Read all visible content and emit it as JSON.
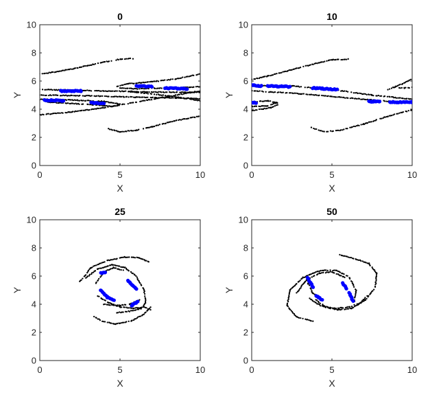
{
  "chart_data": [
    {
      "type": "scatter",
      "title": "0",
      "xlabel": "X",
      "ylabel": "Y",
      "xlim": [
        0,
        10
      ],
      "ylim": [
        0,
        10
      ],
      "xticks": [
        "0",
        "5",
        "10"
      ],
      "yticks": [
        "0",
        "2",
        "4",
        "6",
        "8",
        "10"
      ],
      "grid": false,
      "colors": {
        "tracer": "#000000",
        "highlight": "#0000ff"
      },
      "series": [
        {
          "color": "#000000",
          "curves": [
            [
              [
                0,
                6.5
              ],
              [
                1,
                6.65
              ],
              [
                2,
                6.85
              ],
              [
                3,
                7.1
              ],
              [
                4,
                7.35
              ],
              [
                5,
                7.55
              ],
              [
                5.8,
                7.6
              ]
            ],
            [
              [
                0,
                5.4
              ],
              [
                2,
                5.35
              ],
              [
                4,
                5.3
              ],
              [
                6,
                5.25
              ],
              [
                8,
                5.2
              ],
              [
                10,
                5.2
              ]
            ],
            [
              [
                0,
                5.0
              ],
              [
                3,
                4.95
              ],
              [
                6,
                4.85
              ],
              [
                10,
                4.75
              ]
            ],
            [
              [
                0,
                4.7
              ],
              [
                2,
                4.65
              ],
              [
                4,
                4.55
              ],
              [
                5,
                4.35
              ],
              [
                4.5,
                4.2
              ],
              [
                3.5,
                4.3
              ],
              [
                2,
                4.4
              ],
              [
                0.5,
                4.5
              ]
            ],
            [
              [
                0,
                3.6
              ],
              [
                2,
                3.8
              ],
              [
                4,
                4.1
              ],
              [
                6,
                4.5
              ],
              [
                8,
                4.9
              ],
              [
                10,
                5.3
              ]
            ],
            [
              [
                4.3,
                2.6
              ],
              [
                5,
                2.4
              ],
              [
                6,
                2.5
              ],
              [
                7,
                2.75
              ],
              [
                8.5,
                3.2
              ],
              [
                10,
                3.5
              ]
            ],
            [
              [
                4.8,
                5.6
              ],
              [
                5.5,
                5.8
              ],
              [
                7,
                5.95
              ],
              [
                8.5,
                6.15
              ],
              [
                10,
                6.5
              ]
            ],
            [
              [
                5,
                5.5
              ],
              [
                6,
                5.45
              ],
              [
                8,
                5.5
              ],
              [
                10,
                5.6
              ]
            ],
            [
              [
                5.5,
                5.25
              ],
              [
                6.5,
                5.15
              ],
              [
                8,
                4.95
              ],
              [
                10,
                4.6
              ]
            ]
          ]
        },
        {
          "color": "#0000ff",
          "curves": [
            [
              [
                1.3,
                5.3
              ],
              [
                2.6,
                5.3
              ]
            ],
            [
              [
                0.3,
                4.65
              ],
              [
                1.5,
                4.6
              ]
            ],
            [
              [
                3.2,
                4.45
              ],
              [
                4.0,
                4.4
              ]
            ],
            [
              [
                6.0,
                5.65
              ],
              [
                7.0,
                5.6
              ]
            ],
            [
              [
                7.8,
                5.5
              ],
              [
                9.2,
                5.45
              ]
            ]
          ]
        }
      ]
    },
    {
      "type": "scatter",
      "title": "10",
      "xlabel": "X",
      "ylabel": "Y",
      "xlim": [
        0,
        10
      ],
      "ylim": [
        0,
        10
      ],
      "xticks": [
        "0",
        "5",
        "10"
      ],
      "yticks": [
        "0",
        "2",
        "4",
        "6",
        "8",
        "10"
      ],
      "grid": false,
      "colors": {
        "tracer": "#000000",
        "highlight": "#0000ff"
      },
      "series": [
        {
          "color": "#000000",
          "curves": [
            [
              [
                0,
                6.1
              ],
              [
                1,
                6.35
              ],
              [
                2.5,
                6.8
              ],
              [
                4,
                7.25
              ],
              [
                5,
                7.5
              ],
              [
                6,
                7.55
              ]
            ],
            [
              [
                0,
                5.7
              ],
              [
                2.5,
                5.65
              ],
              [
                5,
                5.4
              ],
              [
                7.5,
                5.0
              ],
              [
                10,
                4.7
              ]
            ],
            [
              [
                0,
                5.3
              ],
              [
                3,
                5.1
              ],
              [
                6,
                4.8
              ],
              [
                8,
                4.6
              ],
              [
                10,
                4.45
              ]
            ],
            [
              [
                0,
                4.5
              ],
              [
                1,
                4.6
              ],
              [
                1.6,
                4.45
              ],
              [
                1,
                4.25
              ],
              [
                0.3,
                4.2
              ],
              [
                0,
                4.2
              ]
            ],
            [
              [
                0,
                3.9
              ],
              [
                1.2,
                4.1
              ],
              [
                1.6,
                4.3
              ]
            ],
            [
              [
                3.7,
                2.7
              ],
              [
                4.5,
                2.4
              ],
              [
                5.5,
                2.5
              ],
              [
                7,
                2.95
              ],
              [
                8.5,
                3.5
              ],
              [
                10,
                3.95
              ]
            ],
            [
              [
                8.5,
                5.4
              ],
              [
                9.2,
                5.7
              ],
              [
                10,
                6.15
              ]
            ],
            [
              [
                8.8,
                5.55
              ],
              [
                9.5,
                5.5
              ],
              [
                10,
                5.55
              ]
            ]
          ]
        },
        {
          "color": "#0000ff",
          "curves": [
            [
              [
                0,
                5.7
              ],
              [
                0.6,
                5.65
              ]
            ],
            [
              [
                1.0,
                5.65
              ],
              [
                2.4,
                5.6
              ]
            ],
            [
              [
                3.8,
                5.5
              ],
              [
                5.3,
                5.4
              ]
            ],
            [
              [
                7.3,
                4.55
              ],
              [
                8.0,
                4.55
              ]
            ],
            [
              [
                8.6,
                4.5
              ],
              [
                10,
                4.5
              ]
            ],
            [
              [
                0,
                4.5
              ],
              [
                0.25,
                4.45
              ]
            ]
          ]
        }
      ]
    },
    {
      "type": "scatter",
      "title": "25",
      "xlabel": "X",
      "ylabel": "Y",
      "xlim": [
        0,
        10
      ],
      "ylim": [
        0,
        10
      ],
      "xticks": [
        "0",
        "5",
        "10"
      ],
      "yticks": [
        "0",
        "2",
        "4",
        "6",
        "8",
        "10"
      ],
      "grid": false,
      "colors": {
        "tracer": "#000000",
        "highlight": "#0000ff"
      },
      "series": [
        {
          "color": "#000000",
          "curves": [
            [
              [
                2.5,
                5.6
              ],
              [
                3.2,
                6.6
              ],
              [
                4.2,
                7.1
              ],
              [
                5.3,
                7.35
              ],
              [
                6.2,
                7.3
              ],
              [
                6.8,
                7.0
              ]
            ],
            [
              [
                2.8,
                5.8
              ],
              [
                3.6,
                6.5
              ],
              [
                4.5,
                6.8
              ],
              [
                5.3,
                6.6
              ],
              [
                6.0,
                6.0
              ],
              [
                6.5,
                5.0
              ],
              [
                6.6,
                4.1
              ],
              [
                6.3,
                3.7
              ],
              [
                5.6,
                3.5
              ],
              [
                4.8,
                3.4
              ]
            ],
            [
              [
                3.5,
                5.5
              ],
              [
                4.0,
                6.3
              ],
              [
                4.6,
                6.6
              ],
              [
                5.2,
                6.4
              ]
            ],
            [
              [
                3.6,
                4.6
              ],
              [
                4.3,
                4.1
              ],
              [
                5.0,
                3.8
              ],
              [
                5.8,
                3.7
              ],
              [
                6.5,
                3.8
              ],
              [
                6.9,
                3.6
              ]
            ],
            [
              [
                3.4,
                3.1
              ],
              [
                3.9,
                2.8
              ],
              [
                4.7,
                2.6
              ],
              [
                5.7,
                2.8
              ],
              [
                6.5,
                3.3
              ],
              [
                6.9,
                3.8
              ]
            ],
            [
              [
                4.0,
                4.0
              ],
              [
                4.8,
                3.9
              ],
              [
                5.6,
                4.0
              ],
              [
                6.2,
                4.3
              ]
            ]
          ]
        },
        {
          "color": "#0000ff",
          "curves": [
            [
              [
                3.8,
                6.2
              ],
              [
                4.1,
                6.25
              ]
            ],
            [
              [
                3.8,
                5.0
              ],
              [
                4.2,
                4.5
              ],
              [
                4.6,
                4.3
              ]
            ],
            [
              [
                5.5,
                5.7
              ],
              [
                6.0,
                5.1
              ]
            ],
            [
              [
                5.7,
                3.9
              ],
              [
                6.1,
                4.2
              ]
            ]
          ]
        }
      ]
    },
    {
      "type": "scatter",
      "title": "50",
      "xlabel": "X",
      "ylabel": "Y",
      "xlim": [
        0,
        10
      ],
      "ylim": [
        0,
        10
      ],
      "xticks": [
        "0",
        "5",
        "10"
      ],
      "yticks": [
        "0",
        "2",
        "4",
        "6",
        "8",
        "10"
      ],
      "grid": false,
      "colors": {
        "tracer": "#000000",
        "highlight": "#0000ff"
      },
      "series": [
        {
          "color": "#000000",
          "curves": [
            [
              [
                3.8,
                2.8
              ],
              [
                2.8,
                3.1
              ],
              [
                2.2,
                3.9
              ],
              [
                2.4,
                5.0
              ],
              [
                3.2,
                5.9
              ],
              [
                4.3,
                6.4
              ],
              [
                5.3,
                6.4
              ],
              [
                6.1,
                5.9
              ],
              [
                6.5,
                5.0
              ],
              [
                6.4,
                4.2
              ]
            ],
            [
              [
                5.5,
                7.5
              ],
              [
                6.5,
                7.2
              ],
              [
                7.3,
                6.9
              ],
              [
                7.8,
                6.2
              ],
              [
                7.7,
                5.2
              ],
              [
                7.1,
                4.3
              ],
              [
                6.2,
                3.7
              ],
              [
                5.4,
                3.6
              ],
              [
                4.6,
                3.8
              ],
              [
                4.0,
                4.3
              ]
            ],
            [
              [
                2.8,
                4.8
              ],
              [
                3.4,
                5.7
              ],
              [
                4.2,
                6.2
              ],
              [
                5.0,
                6.3
              ],
              [
                5.8,
                5.9
              ]
            ],
            [
              [
                3.6,
                4.4
              ],
              [
                4.3,
                3.9
              ],
              [
                5.2,
                3.7
              ],
              [
                6.1,
                3.8
              ],
              [
                6.8,
                4.1
              ],
              [
                7.2,
                4.6
              ]
            ],
            [
              [
                3.5,
                5.5
              ],
              [
                3.8,
                4.8
              ],
              [
                4.2,
                4.4
              ]
            ]
          ]
        },
        {
          "color": "#0000ff",
          "curves": [
            [
              [
                3.5,
                5.9
              ],
              [
                3.8,
                5.2
              ]
            ],
            [
              [
                4.0,
                4.6
              ],
              [
                4.4,
                4.3
              ]
            ],
            [
              [
                5.7,
                5.5
              ],
              [
                5.9,
                5.1
              ]
            ],
            [
              [
                6.1,
                4.8
              ],
              [
                6.3,
                4.2
              ]
            ]
          ]
        }
      ]
    }
  ]
}
